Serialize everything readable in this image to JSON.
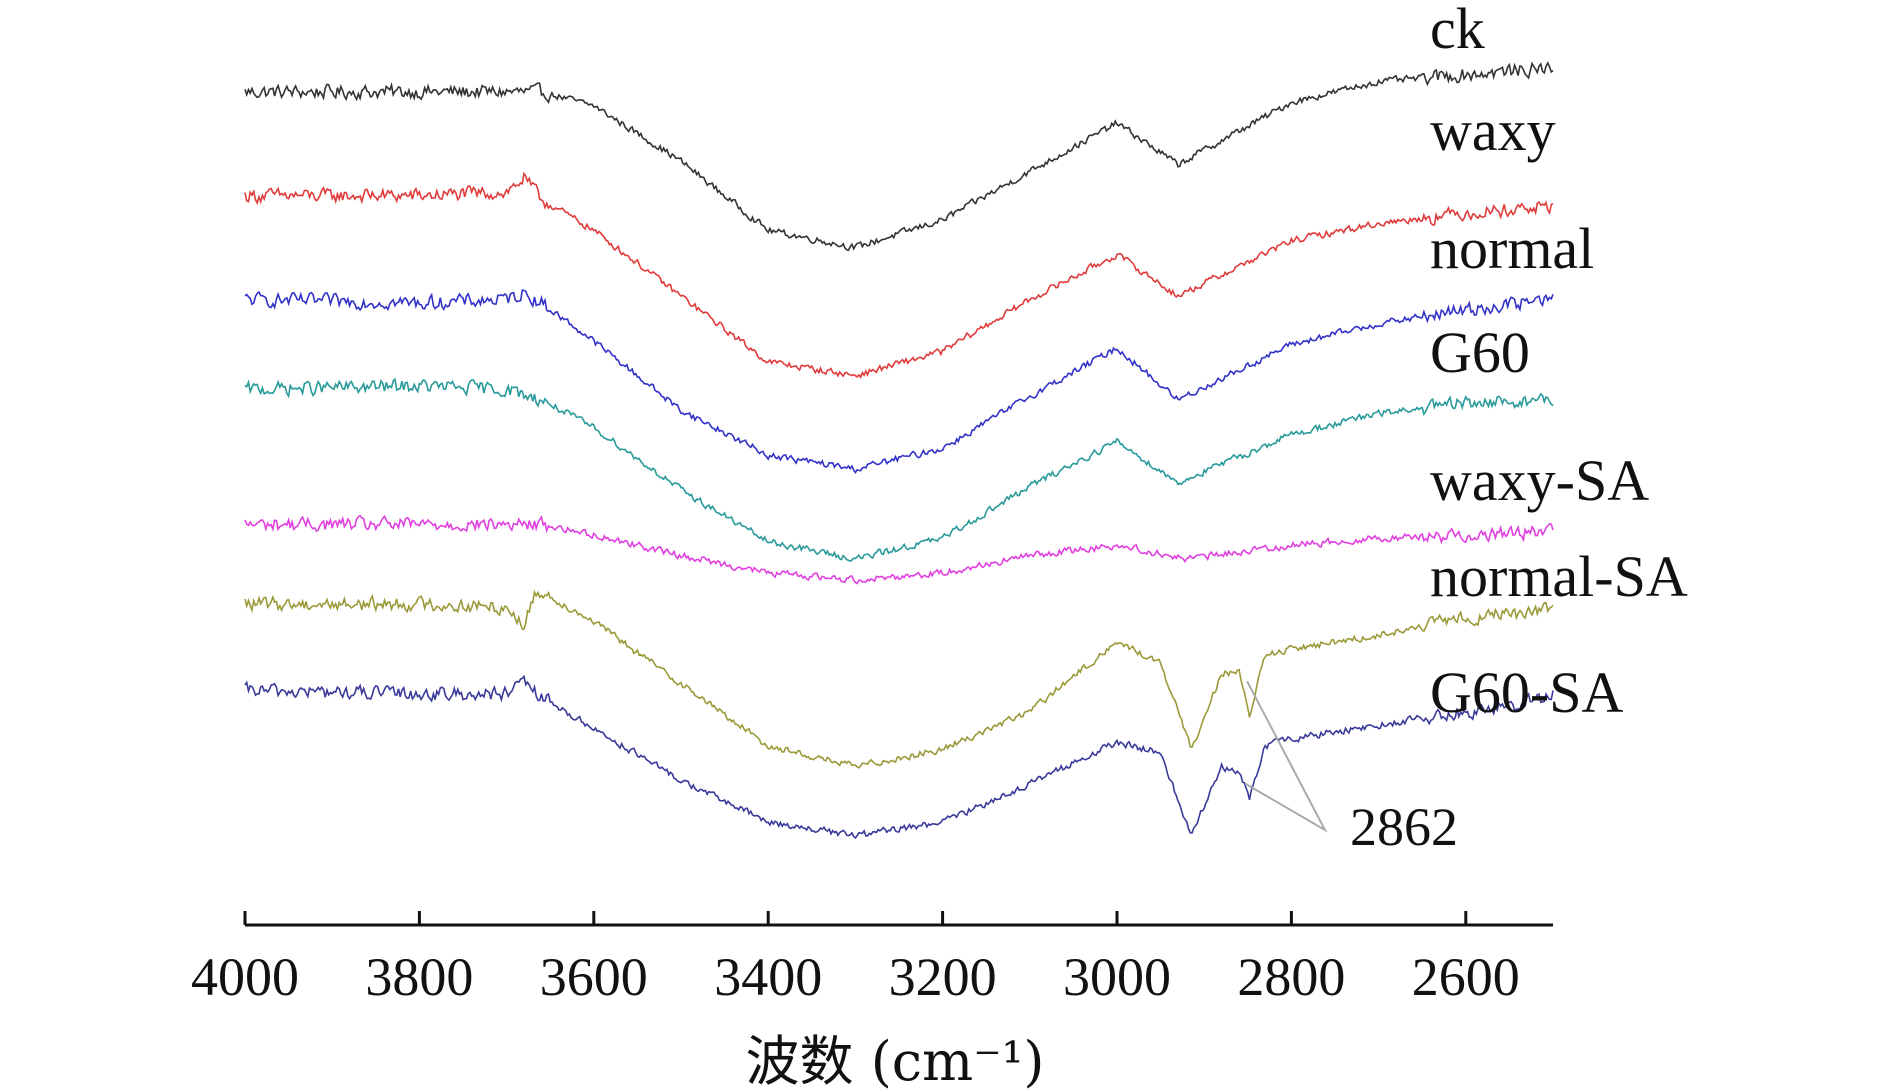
{
  "chart_data": {
    "type": "line",
    "title": "",
    "xlabel": "波数 (cm⁻¹)",
    "ylabel": "",
    "xlim": [
      4000,
      2500
    ],
    "x_reversed": true,
    "y_ticks_shown": false,
    "grid": false,
    "legend": "series labels at right end of each curve",
    "x_ticks": [
      4000,
      3800,
      3600,
      3400,
      3200,
      3000,
      2800,
      2600
    ],
    "x_tick_labels": [
      "4000",
      "3800",
      "3600",
      "3400",
      "3200",
      "3000",
      "2800",
      "2600"
    ],
    "series": [
      {
        "name": "ck",
        "color": "#333333",
        "x": [
          4000,
          3800,
          3660,
          3600,
          3500,
          3400,
          3300,
          3200,
          3100,
          3000,
          2930,
          2800,
          2700,
          2600,
          2500
        ],
        "y": [
          0.5,
          0.5,
          0.5,
          0.1,
          -1.5,
          -3.5,
          -4.0,
          -3.2,
          -1.8,
          -0.4,
          -1.6,
          0.2,
          0.8,
          1.0,
          1.2
        ]
      },
      {
        "name": "waxy",
        "color": "#e03b3b",
        "x": [
          4000,
          3800,
          3700,
          3680,
          3660,
          3600,
          3500,
          3400,
          3300,
          3200,
          3100,
          3000,
          2930,
          2800,
          2700,
          2600,
          2500
        ],
        "y": [
          -2.5,
          -2.5,
          -2.4,
          -2.0,
          -2.6,
          -3.5,
          -5.4,
          -7.3,
          -7.7,
          -7.0,
          -5.5,
          -4.2,
          -5.4,
          -3.8,
          -3.3,
          -3.0,
          -2.8
        ]
      },
      {
        "name": "normal",
        "color": "#3232c8",
        "x": [
          4000,
          3800,
          3700,
          3680,
          3660,
          3600,
          3500,
          3400,
          3300,
          3200,
          3100,
          3000,
          2930,
          2800,
          2700,
          2600,
          2500
        ],
        "y": [
          -5.5,
          -5.6,
          -5.5,
          -5.3,
          -5.6,
          -6.7,
          -8.7,
          -10.0,
          -10.4,
          -9.8,
          -8.3,
          -6.9,
          -8.4,
          -6.8,
          -6.2,
          -5.8,
          -5.5
        ]
      },
      {
        "name": "G60",
        "color": "#2a9a9a",
        "x": [
          4000,
          3800,
          3700,
          3660,
          3600,
          3500,
          3400,
          3300,
          3200,
          3100,
          3000,
          2930,
          2800,
          2700,
          2600,
          2500
        ],
        "y": [
          -8.1,
          -8.0,
          -8.1,
          -8.4,
          -9.2,
          -11.0,
          -12.5,
          -13.0,
          -12.4,
          -10.9,
          -9.6,
          -10.8,
          -9.4,
          -8.8,
          -8.5,
          -8.4
        ]
      },
      {
        "name": "waxy-SA",
        "color": "#e040e0",
        "x": [
          4000,
          3800,
          3660,
          3600,
          3500,
          3400,
          3300,
          3200,
          3100,
          3000,
          2920,
          2800,
          2700,
          2600,
          2500
        ],
        "y": [
          -12.0,
          -12.0,
          -12.0,
          -12.3,
          -12.9,
          -13.4,
          -13.6,
          -13.4,
          -12.9,
          -12.6,
          -13.0,
          -12.6,
          -12.4,
          -12.3,
          -12.2
        ]
      },
      {
        "name": "normal-SA",
        "color": "#9a9a3a",
        "x": [
          4000,
          3800,
          3700,
          3680,
          3665,
          3600,
          3500,
          3400,
          3300,
          3200,
          3100,
          3000,
          2950,
          2915,
          2880,
          2860,
          2848,
          2830,
          2800,
          2700,
          2600,
          2550,
          2500
        ],
        "y": [
          -14.3,
          -14.3,
          -14.4,
          -14.9,
          -13.9,
          -14.8,
          -16.6,
          -18.4,
          -19.0,
          -18.5,
          -17.4,
          -15.4,
          -16.0,
          -18.5,
          -16.3,
          -16.3,
          -17.5,
          -15.8,
          -15.6,
          -15.2,
          -14.7,
          -14.6,
          -14.4
        ]
      },
      {
        "name": "G60-SA",
        "color": "#3a3a9a",
        "x": [
          4000,
          3800,
          3700,
          3680,
          3660,
          3600,
          3500,
          3400,
          3300,
          3200,
          3100,
          3000,
          2950,
          2915,
          2880,
          2860,
          2848,
          2830,
          2800,
          2700,
          2600,
          2550,
          2500
        ],
        "y": [
          -16.8,
          -16.9,
          -16.9,
          -16.6,
          -17.0,
          -17.9,
          -19.4,
          -20.6,
          -21.0,
          -20.6,
          -19.5,
          -18.3,
          -18.6,
          -21.0,
          -19.0,
          -19.2,
          -19.9,
          -18.4,
          -18.2,
          -17.8,
          -17.4,
          -17.3,
          -16.9
        ]
      }
    ],
    "ylim": [
      -23.0,
      2.0
    ],
    "annotations": [
      {
        "text": "2862",
        "x": 2860
      }
    ]
  }
}
